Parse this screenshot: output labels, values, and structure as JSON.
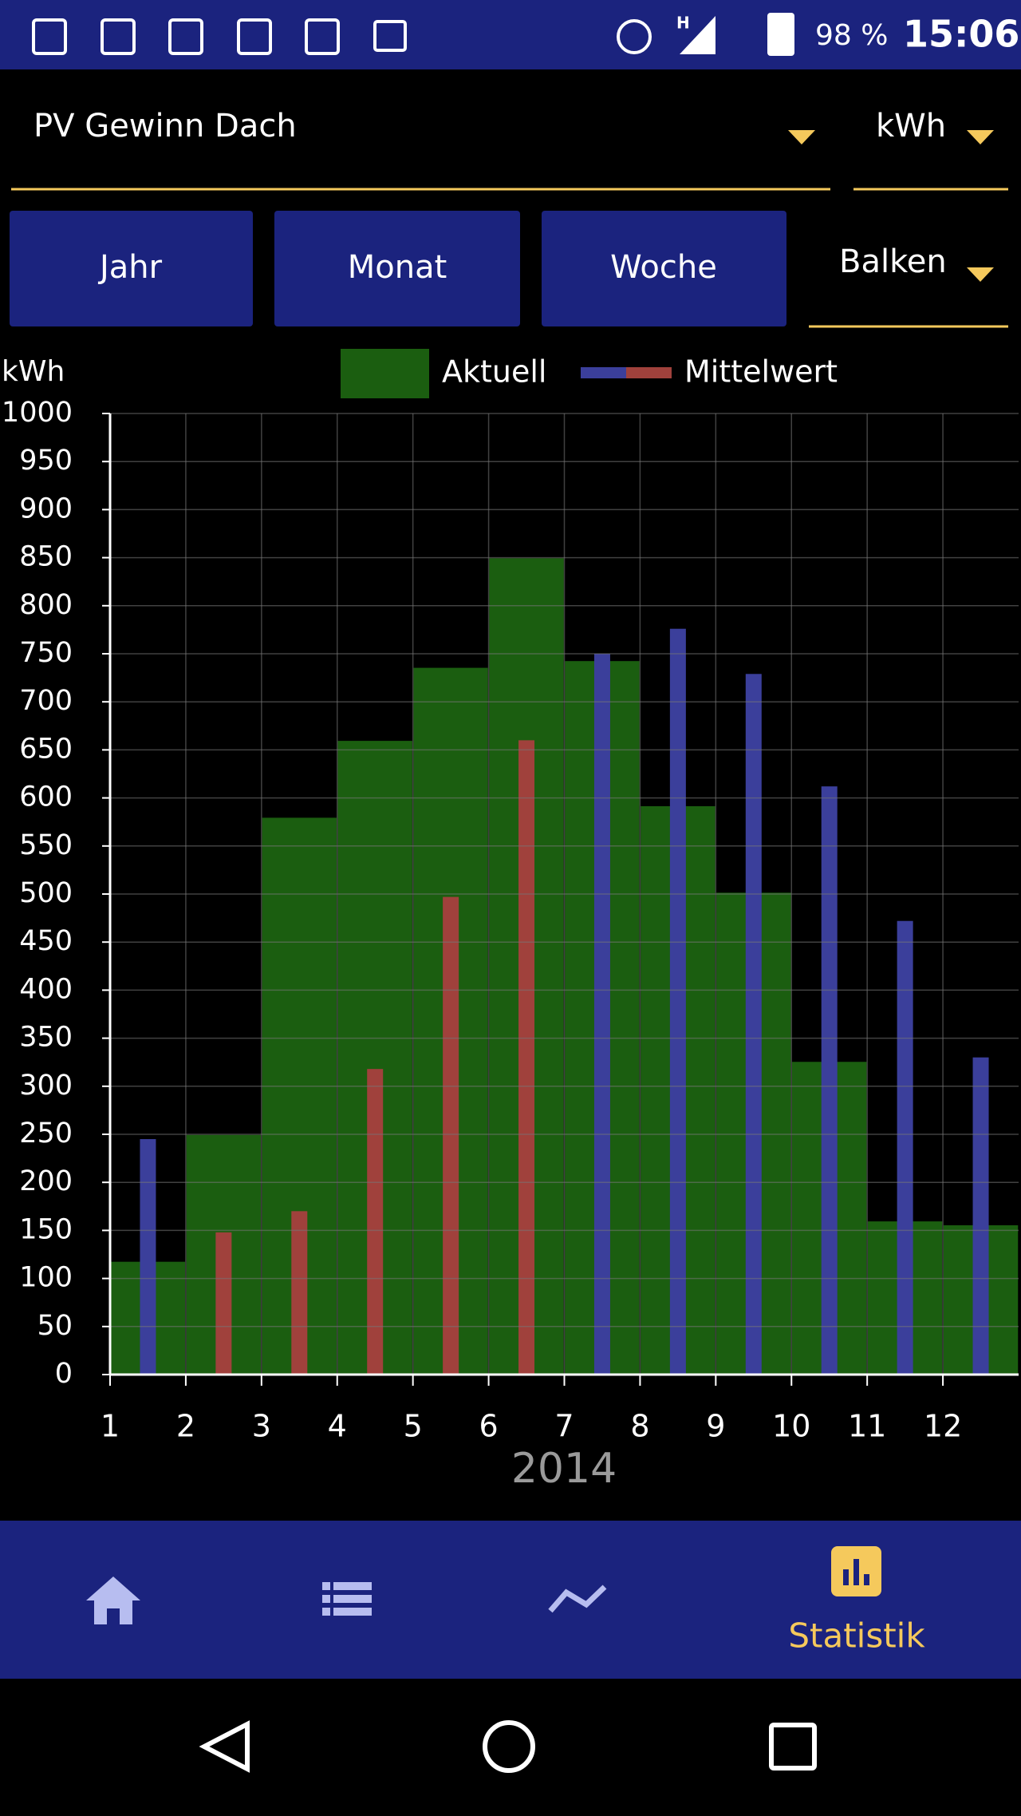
{
  "status_bar": {
    "network": "H",
    "battery": "98 %",
    "time": "15:06"
  },
  "selector": {
    "dataset": "PV Gewinn Dach",
    "unit": "kWh"
  },
  "buttons": [
    "Jahr",
    "Monat",
    "Woche"
  ],
  "chart_style": "Balken",
  "chart_data": {
    "type": "bar",
    "y_label": "kWh",
    "x_label": "2014",
    "categories": [
      "1",
      "2",
      "3",
      "4",
      "5",
      "6",
      "7",
      "8",
      "9",
      "10",
      "11",
      "12"
    ],
    "series": [
      {
        "name": "Aktuell",
        "color": "#1b5e10",
        "values": [
          118,
          250,
          580,
          660,
          736,
          850,
          743,
          592,
          502,
          326,
          160,
          156
        ]
      },
      {
        "name": "Mittelwert",
        "colors": [
          "#3b3f9b",
          "#a0413c",
          "#a0413c",
          "#a0413c",
          "#a0413c",
          "#a0413c",
          "#3b3f9b",
          "#3b3f9b",
          "#3b3f9b",
          "#3b3f9b",
          "#3b3f9b",
          "#3b3f9b"
        ],
        "values": [
          245,
          148,
          170,
          318,
          497,
          660,
          750,
          776,
          729,
          612,
          472,
          330
        ]
      }
    ],
    "ylim": [
      0,
      1000
    ],
    "yticks": [
      0,
      50,
      100,
      150,
      200,
      250,
      300,
      350,
      400,
      450,
      500,
      550,
      600,
      650,
      700,
      750,
      800,
      850,
      900,
      950,
      1000
    ],
    "grid": true
  },
  "bottom_nav": {
    "active": "Statistik"
  }
}
